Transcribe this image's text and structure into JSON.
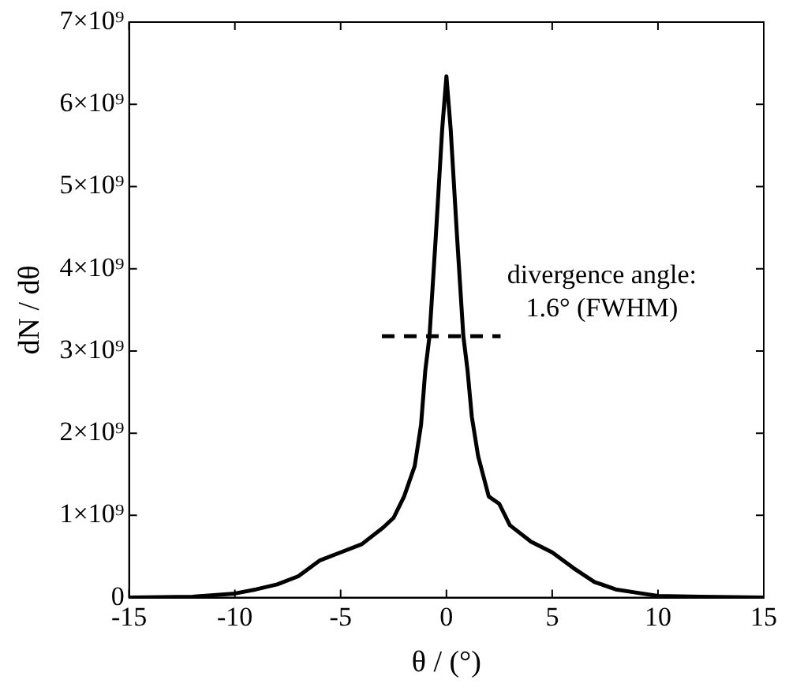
{
  "chart_data": {
    "type": "line",
    "xlabel": "θ / (°)",
    "ylabel": "dN / dθ",
    "xlim": [
      -15,
      15
    ],
    "xticks": [
      -15,
      -10,
      -5,
      0,
      5,
      10,
      15
    ],
    "ylim": [
      0,
      7000000000.0
    ],
    "yticks": [
      0,
      {
        "value": 1000000000.0,
        "label": "1×10⁹"
      },
      {
        "value": 2000000000.0,
        "label": "2×10⁹"
      },
      {
        "value": 3000000000.0,
        "label": "3×10⁹"
      },
      {
        "value": 4000000000.0,
        "label": "4×10⁹"
      },
      {
        "value": 5000000000.0,
        "label": "5×10⁹"
      },
      {
        "value": 6000000000.0,
        "label": "6×10⁹"
      },
      {
        "value": 7000000000.0,
        "label": "7×10⁹"
      }
    ],
    "marker": "none",
    "legend": false,
    "grid": false,
    "annotations": [
      "divergence angle:\n1.6° (FWHM)"
    ],
    "series": [
      {
        "color": "#000000",
        "line_style": "solid",
        "x": [
          -15,
          -12,
          -10,
          -9,
          -8,
          -7,
          -6,
          -5,
          -4,
          -3,
          -2.5,
          -2,
          -1.5,
          -1.2,
          -1,
          -0.8,
          -0.5,
          -0.2,
          0,
          0.2,
          0.5,
          0.8,
          1,
          1.2,
          1.5,
          2,
          2.5,
          3,
          4,
          5,
          6,
          7,
          8,
          9,
          10,
          12,
          15
        ],
        "values": [
          0,
          10000000.0,
          50000000.0,
          100000000.0,
          160000000.0,
          260000000.0,
          450000000.0,
          550000000.0,
          650000000.0,
          850000000.0,
          970000000.0,
          1230000000.0,
          1600000000.0,
          2100000000.0,
          2760000000.0,
          3180000000.0,
          4400000000.0,
          5700000000.0,
          6340000000.0,
          5700000000.0,
          4400000000.0,
          3180000000.0,
          2760000000.0,
          2200000000.0,
          1720000000.0,
          1230000000.0,
          1140000000.0,
          880000000.0,
          680000000.0,
          550000000.0,
          360000000.0,
          190000000.0,
          100000000.0,
          60000000.0,
          20000000.0,
          10000000.0,
          0
        ]
      },
      {
        "color": "#000000",
        "line_style": "dashed",
        "x": [
          -3.05,
          2.56
        ],
        "values": [
          3180000000.0,
          3180000000.0
        ]
      }
    ]
  }
}
